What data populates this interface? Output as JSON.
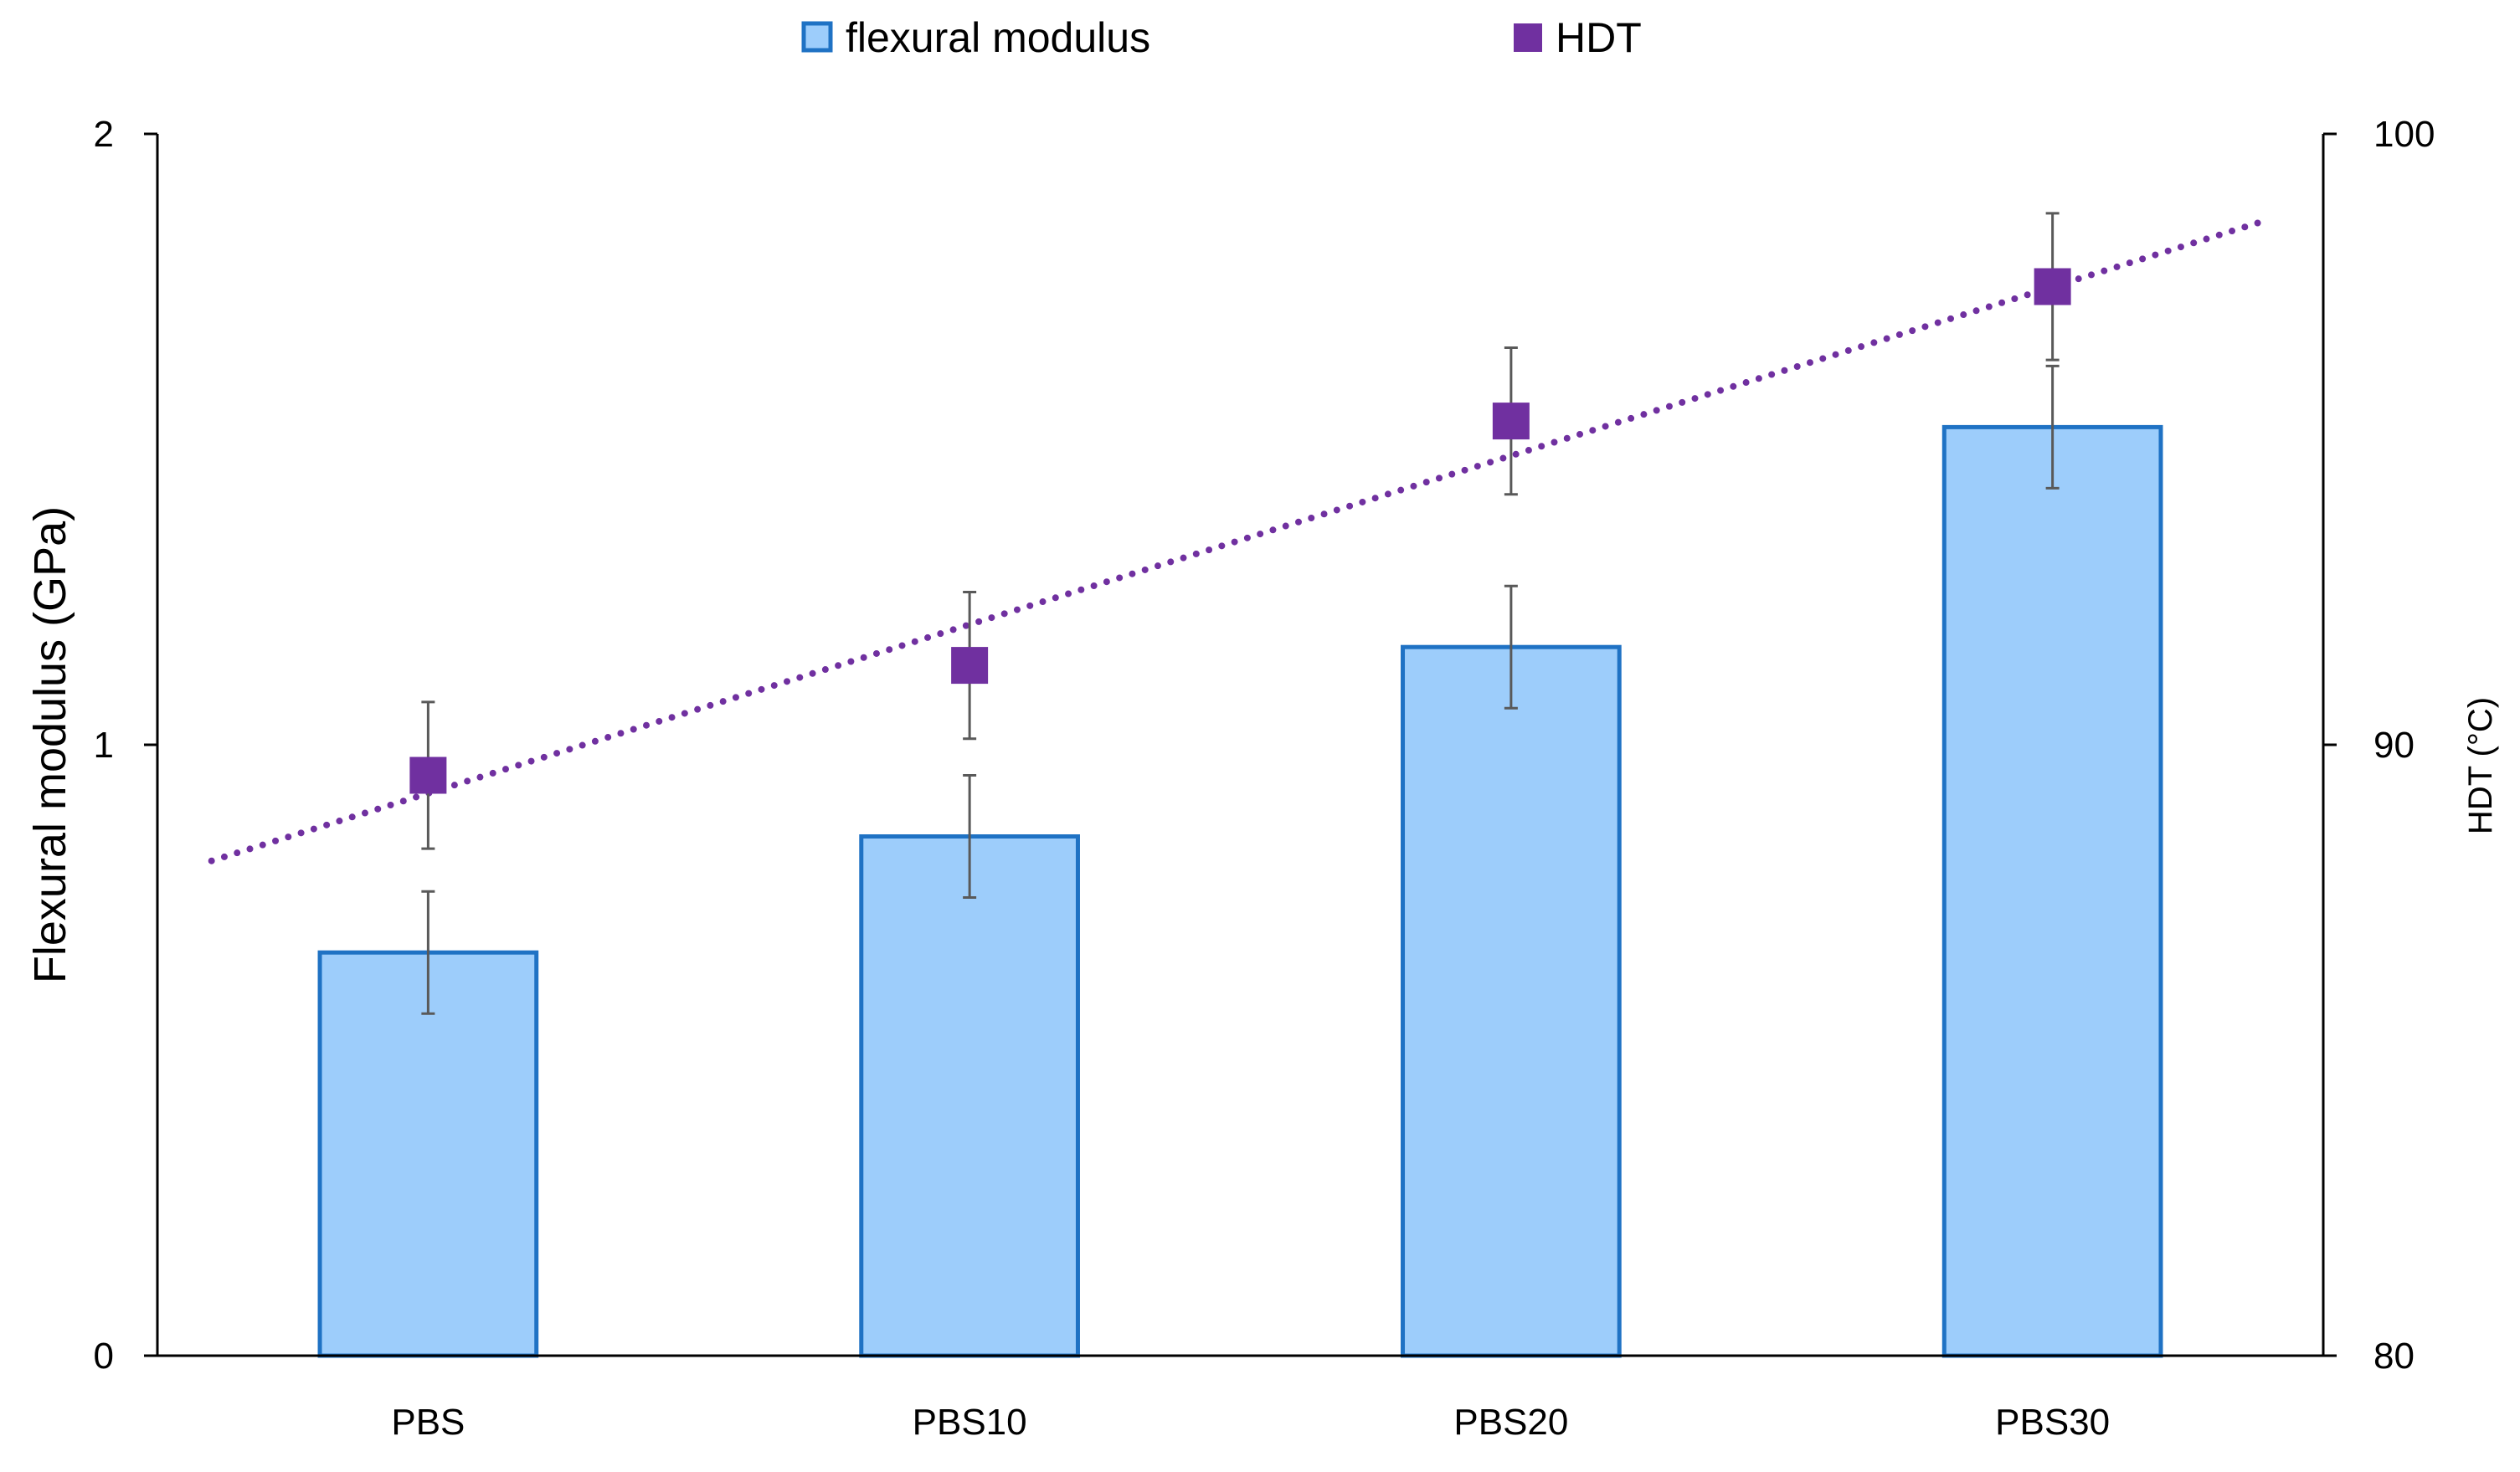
{
  "chart_data": {
    "type": "bar",
    "title": "",
    "categories": [
      "PBS",
      "PBS10",
      "PBS20",
      "PBS30"
    ],
    "xlabel": "",
    "ylabel": "Flexural modulus (GPa)",
    "y2label": "HDT (°C)",
    "ylim": [
      0,
      2
    ],
    "y2lim": [
      80,
      100
    ],
    "yticks": [
      "0",
      "1",
      "2"
    ],
    "y2ticks": [
      "80",
      "90",
      "100"
    ],
    "legend_position": "top-center",
    "grid": false,
    "series": [
      {
        "name": "flexural modulus",
        "type": "bar",
        "axis": "left",
        "values": [
          0.66,
          0.85,
          1.16,
          1.52
        ],
        "errors": [
          0.1,
          0.1,
          0.1,
          0.1
        ],
        "fill": "#9dcdfb",
        "stroke": "#1f72c4"
      },
      {
        "name": "HDT",
        "type": "scatter",
        "axis": "right",
        "values": [
          89.5,
          91.3,
          95.3,
          97.5
        ],
        "errors": [
          1.2,
          1.2,
          1.2,
          1.2
        ],
        "color": "#7030a0"
      }
    ],
    "trendline": {
      "series": "HDT",
      "style": "dotted",
      "color": "#7030a0",
      "x_start": -0.4,
      "x_end": 3.4,
      "y_start": 88.1,
      "y_end": 98.6
    }
  }
}
